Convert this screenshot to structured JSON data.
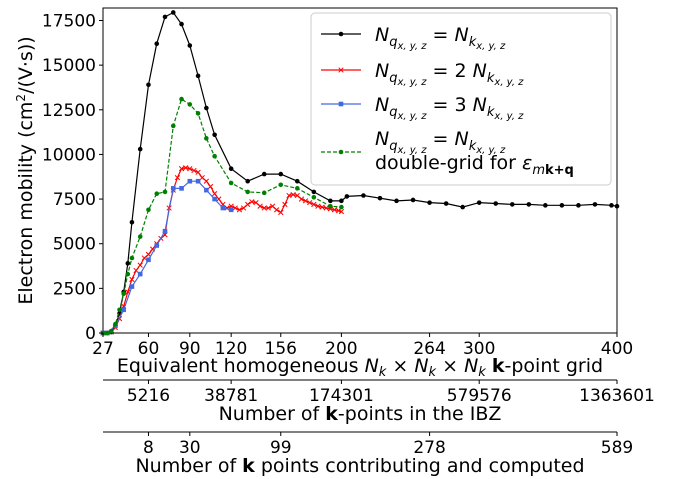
{
  "chart_data": {
    "type": "line",
    "ylabel": "Electron mobility (cm²/(V·s))",
    "ylim": [
      0,
      18200
    ],
    "yticks": [
      0,
      2500,
      5000,
      7500,
      10000,
      12500,
      15000,
      17500
    ],
    "xlim": [
      27,
      400
    ],
    "xticks": [
      27,
      60,
      90,
      120,
      156,
      200,
      264,
      300,
      400
    ],
    "xlabel_parts": [
      "Equivalent homogeneous ",
      "N",
      "k",
      " × ",
      "N",
      "k",
      " × ",
      "N",
      "k",
      " ",
      "k",
      "-point grid"
    ],
    "secondary_axes": [
      {
        "label_parts": [
          "Number of ",
          "k",
          "-points in the IBZ"
        ],
        "ticks": [
          {
            "pos": 60,
            "label": "5216"
          },
          {
            "pos": 120,
            "label": "38781"
          },
          {
            "pos": 200,
            "label": "174301"
          },
          {
            "pos": 300,
            "label": "579576"
          },
          {
            "pos": 400,
            "label": "1363601"
          }
        ]
      },
      {
        "label_parts": [
          "Number of ",
          "k",
          " points contributing and computed"
        ],
        "ticks": [
          {
            "pos": 60,
            "label": "8"
          },
          {
            "pos": 90,
            "label": "30"
          },
          {
            "pos": 156,
            "label": "99"
          },
          {
            "pos": 264,
            "label": "278"
          },
          {
            "pos": 400,
            "label": "589"
          }
        ]
      }
    ],
    "legend_position": "top-right",
    "legend": [
      {
        "lhs": "N",
        "lhs_sub": "q",
        "lhs_subsub": "x, y, z",
        "eq": " = ",
        "coef": "",
        "rhs": "N",
        "rhs_sub": "k",
        "rhs_subsub": "x, y, z",
        "line2_parts": []
      },
      {
        "lhs": "N",
        "lhs_sub": "q",
        "lhs_subsub": "x, y, z",
        "eq": " = ",
        "coef": "2 ",
        "rhs": "N",
        "rhs_sub": "k",
        "rhs_subsub": "x, y, z",
        "line2_parts": []
      },
      {
        "lhs": "N",
        "lhs_sub": "q",
        "lhs_subsub": "x, y, z",
        "eq": " = ",
        "coef": "3 ",
        "rhs": "N",
        "rhs_sub": "k",
        "rhs_subsub": "x, y, z",
        "line2_parts": []
      },
      {
        "lhs": "N",
        "lhs_sub": "q",
        "lhs_subsub": "x, y, z",
        "eq": " = ",
        "coef": "",
        "rhs": "N",
        "rhs_sub": "k",
        "rhs_subsub": "x, y, z",
        "line2_parts": [
          "double-grid for ",
          "ε",
          "mk+q"
        ]
      }
    ],
    "series": [
      {
        "color": "#000000",
        "marker": "circle",
        "dash": "none",
        "x": [
          27,
          30,
          33,
          36,
          39,
          42,
          45,
          48,
          54,
          60,
          66,
          72,
          78,
          84,
          90,
          96,
          102,
          108,
          120,
          132,
          144,
          156,
          168,
          180,
          192,
          200,
          204,
          216,
          228,
          240,
          252,
          264,
          276,
          288,
          300,
          312,
          324,
          336,
          348,
          360,
          372,
          384,
          396,
          400
        ],
        "y": [
          0,
          0,
          50,
          400,
          1100,
          2300,
          3900,
          6200,
          10300,
          13900,
          16200,
          17700,
          17950,
          17300,
          16100,
          14400,
          12600,
          11100,
          9200,
          8500,
          8900,
          8900,
          8500,
          7900,
          7400,
          7400,
          7650,
          7700,
          7550,
          7400,
          7450,
          7300,
          7250,
          7050,
          7300,
          7250,
          7200,
          7200,
          7150,
          7150,
          7150,
          7200,
          7150,
          7100
        ]
      },
      {
        "color": "#ff0000",
        "marker": "x",
        "dash": "none",
        "x": [
          27,
          30,
          33,
          36,
          39,
          42,
          45,
          48,
          51,
          54,
          57,
          60,
          63,
          66,
          69,
          72,
          75,
          78,
          81,
          84,
          87,
          90,
          93,
          96,
          99,
          102,
          105,
          108,
          111,
          114,
          117,
          120,
          123,
          126,
          129,
          132,
          135,
          138,
          141,
          144,
          147,
          150,
          153,
          156,
          159,
          162,
          165,
          168,
          171,
          174,
          177,
          180,
          183,
          186,
          189,
          192,
          195,
          198,
          200
        ],
        "y": [
          0,
          0,
          50,
          300,
          800,
          1500,
          2300,
          3000,
          3500,
          3800,
          4200,
          4400,
          4700,
          5000,
          5300,
          5500,
          7000,
          8000,
          8700,
          9200,
          9250,
          9200,
          9100,
          9000,
          8700,
          8500,
          8200,
          7800,
          7500,
          7200,
          7000,
          7100,
          7000,
          6900,
          7000,
          7200,
          7350,
          7300,
          7100,
          7000,
          7000,
          7100,
          6900,
          6750,
          7200,
          7700,
          7750,
          7700,
          7500,
          7400,
          7300,
          7200,
          7100,
          7050,
          7000,
          6950,
          6900,
          6850,
          6800
        ]
      },
      {
        "color": "#4169e1",
        "marker": "square",
        "dash": "none",
        "x": [
          27,
          30,
          36,
          42,
          48,
          54,
          60,
          66,
          72,
          78,
          84,
          90,
          96,
          102,
          108,
          114,
          120
        ],
        "y": [
          0,
          0,
          400,
          1300,
          2600,
          3300,
          4100,
          4900,
          5700,
          8100,
          8100,
          8500,
          8500,
          8000,
          7500,
          7000,
          6900
        ]
      },
      {
        "color": "#008000",
        "marker": "circle",
        "dash": "dashed",
        "x": [
          27,
          30,
          33,
          36,
          39,
          42,
          45,
          48,
          54,
          60,
          66,
          72,
          78,
          84,
          90,
          96,
          102,
          108,
          120,
          132,
          144,
          156,
          168,
          180,
          192,
          200
        ],
        "y": [
          0,
          0,
          100,
          500,
          1300,
          2200,
          3300,
          4200,
          5400,
          6900,
          7800,
          7900,
          11600,
          13100,
          12800,
          12300,
          10900,
          9900,
          8400,
          7900,
          7850,
          8300,
          8100,
          7600,
          7100,
          7050
        ]
      }
    ]
  }
}
